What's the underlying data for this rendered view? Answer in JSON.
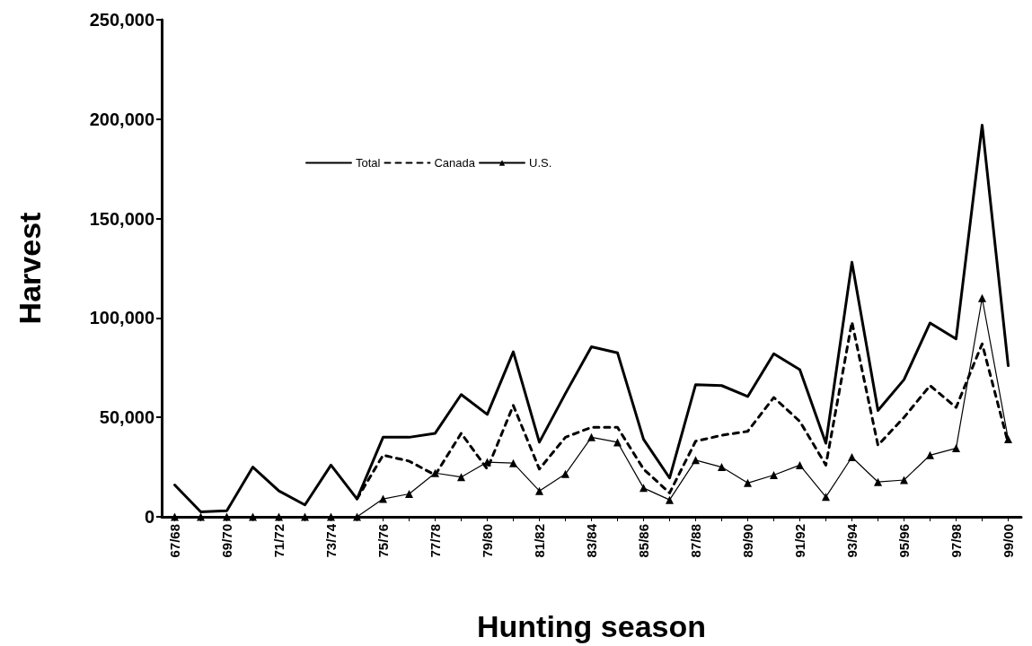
{
  "chart_data": {
    "type": "line",
    "xlabel": "Hunting season",
    "ylabel": "Harvest",
    "categories": [
      "67/68",
      null,
      "69/70",
      null,
      "71/72",
      null,
      "73/74",
      null,
      "75/76",
      null,
      "77/78",
      null,
      "79/80",
      null,
      "81/82",
      null,
      "83/84",
      null,
      "85/86",
      null,
      "87/88",
      null,
      "89/90",
      null,
      "91/92",
      null,
      "93/94",
      null,
      "95/96",
      null,
      "97/98",
      null,
      "99/00"
    ],
    "series": [
      {
        "name": "Total",
        "color": "#000000",
        "line_style": "solid",
        "marker": "none",
        "values": [
          16000,
          2500,
          3000,
          25000,
          13000,
          6000,
          26000,
          9000,
          40000,
          40000,
          42000,
          61500,
          51500,
          83000,
          37500,
          62000,
          85500,
          82500,
          39000,
          19500,
          66500,
          66000,
          60500,
          82000,
          74000,
          37000,
          128000,
          53500,
          69000,
          97500,
          89500,
          197000,
          76000
        ]
      },
      {
        "name": "Canada",
        "color": "#000000",
        "line_style": "dashed",
        "marker": "none",
        "values": [
          null,
          null,
          null,
          null,
          null,
          null,
          null,
          9000,
          31000,
          28000,
          21000,
          42000,
          24000,
          56000,
          24000,
          40000,
          45000,
          45000,
          24000,
          12000,
          38000,
          41000,
          43000,
          60000,
          48000,
          26000,
          98000,
          36000,
          50000,
          66000,
          55000,
          87000,
          37000
        ]
      },
      {
        "name": "U.S.",
        "color": "#000000",
        "line_style": "solid",
        "marker": "triangle",
        "values": [
          0,
          0,
          0,
          0,
          0,
          0,
          0,
          0,
          9000,
          11500,
          22000,
          20000,
          27500,
          27000,
          13000,
          21500,
          40000,
          37500,
          14500,
          8500,
          28500,
          25000,
          17000,
          21000,
          26000,
          10000,
          30000,
          17500,
          18500,
          31000,
          34500,
          110000,
          39000
        ]
      }
    ],
    "ylim": [
      0,
      250000
    ],
    "yticks": [
      {
        "value": 0,
        "label": "0"
      },
      {
        "value": 50000,
        "label": "50,000"
      },
      {
        "value": 100000,
        "label": "100,000"
      },
      {
        "value": 150000,
        "label": "150,000"
      },
      {
        "value": 200000,
        "label": "200,000"
      },
      {
        "value": 250000,
        "label": "250,000"
      }
    ],
    "grid": false,
    "legend": "top"
  }
}
